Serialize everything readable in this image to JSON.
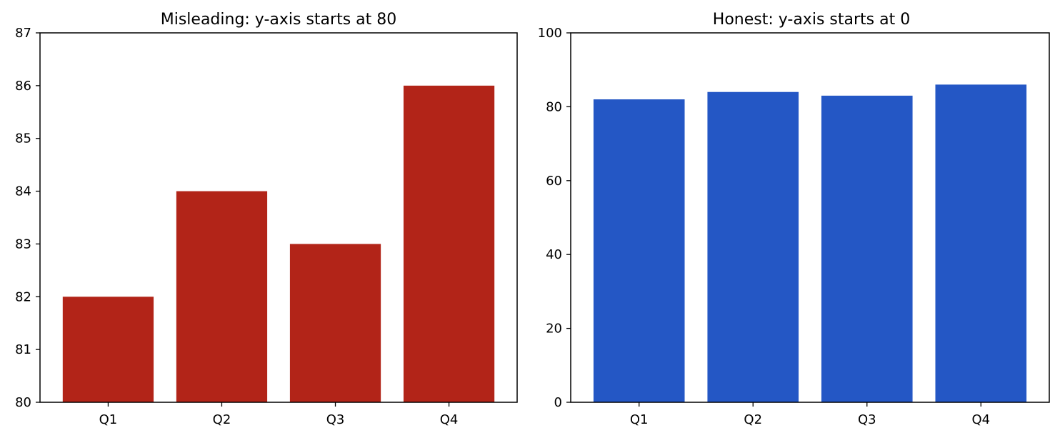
{
  "chart_data": [
    {
      "type": "bar",
      "title": "Misleading: y-axis starts at 80",
      "categories": [
        "Q1",
        "Q2",
        "Q3",
        "Q4"
      ],
      "values": [
        82,
        84,
        83,
        86
      ],
      "ylim": [
        80,
        87
      ],
      "yticks": [
        80,
        81,
        82,
        83,
        84,
        85,
        86,
        87
      ],
      "xlabel": "",
      "ylabel": "",
      "color": "#b22418",
      "grid": false
    },
    {
      "type": "bar",
      "title": "Honest: y-axis starts at 0",
      "categories": [
        "Q1",
        "Q2",
        "Q3",
        "Q4"
      ],
      "values": [
        82,
        84,
        83,
        86
      ],
      "ylim": [
        0,
        100
      ],
      "yticks": [
        0,
        20,
        40,
        60,
        80,
        100
      ],
      "xlabel": "",
      "ylabel": "",
      "color": "#2457c5",
      "grid": false
    }
  ]
}
